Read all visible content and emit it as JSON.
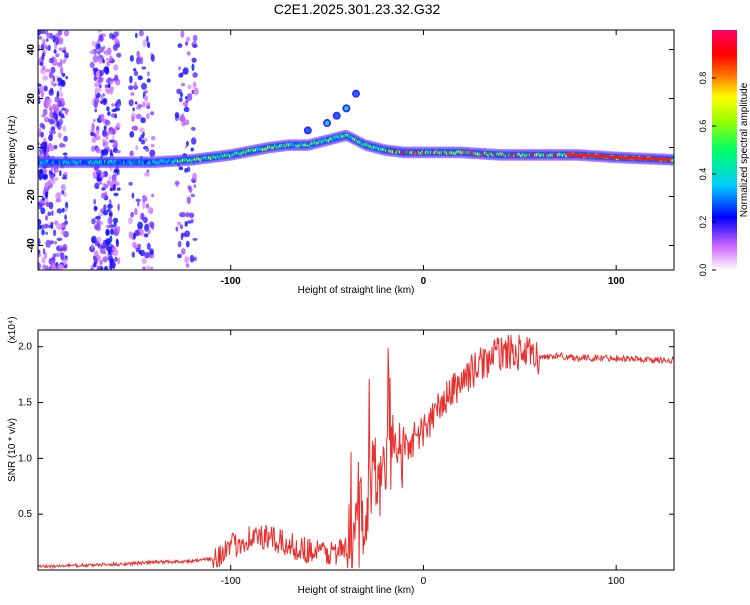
{
  "title": "C2E1.2025.301.23.32.G32",
  "chart_data": [
    {
      "type": "heatmap",
      "xlabel": "Height of straight line (km)",
      "ylabel": "Frequency (Hz)",
      "xlim": [
        -200,
        130
      ],
      "ylim": [
        -50,
        48
      ],
      "xticks": [
        -100,
        0,
        100
      ],
      "yticks": [
        -40,
        -20,
        0,
        20,
        40
      ],
      "colorbar": {
        "label": "Normalized spectral amplitude",
        "range": [
          0,
          1
        ],
        "ticks": [
          "0.0",
          "0.2",
          "0.4",
          "0.6",
          "0.8"
        ]
      },
      "ridge": {
        "x": [
          -200,
          -180,
          -160,
          -140,
          -120,
          -100,
          -80,
          -70,
          -60,
          -50,
          -40,
          -30,
          -20,
          -10,
          0,
          20,
          40,
          60,
          80,
          100,
          130
        ],
        "y": [
          -6,
          -6,
          -6,
          -6,
          -5,
          -3,
          0,
          1,
          1,
          3,
          5,
          1,
          -1,
          -2,
          -2,
          -2,
          -3,
          -3,
          -3,
          -4,
          -5
        ]
      },
      "side_branch": {
        "x": [
          -60,
          -50,
          -45,
          -40,
          -35
        ],
        "y": [
          7,
          10,
          13,
          16,
          22
        ]
      }
    },
    {
      "type": "line",
      "xlabel": "Height of straight line (km)",
      "ylabel": "SNR (10 * v/v)",
      "y_multiplier": "(x10⁴)",
      "xlim": [
        -200,
        130
      ],
      "ylim": [
        0,
        2.15
      ],
      "xticks": [
        -100,
        0,
        100
      ],
      "yticks": [
        "0.5",
        "1.0",
        "1.5",
        "2.0"
      ],
      "series": [
        {
          "name": "SNR",
          "color": "#e8302e",
          "x": [
            -200,
            -180,
            -160,
            -140,
            -120,
            -110,
            -100,
            -90,
            -80,
            -70,
            -60,
            -50,
            -40,
            -35,
            -30,
            -25,
            -20,
            -15,
            -10,
            0,
            10,
            20,
            30,
            40,
            50,
            60,
            70,
            80,
            90,
            100,
            110,
            120,
            130
          ],
          "y": [
            0.03,
            0.04,
            0.05,
            0.07,
            0.08,
            0.1,
            0.2,
            0.3,
            0.28,
            0.22,
            0.18,
            0.15,
            0.18,
            0.3,
            0.6,
            0.85,
            0.9,
            1.0,
            1.1,
            1.25,
            1.5,
            1.7,
            1.85,
            1.95,
            1.95,
            1.9,
            1.92,
            1.9,
            1.9,
            1.9,
            1.89,
            1.88,
            1.88
          ]
        }
      ]
    }
  ]
}
